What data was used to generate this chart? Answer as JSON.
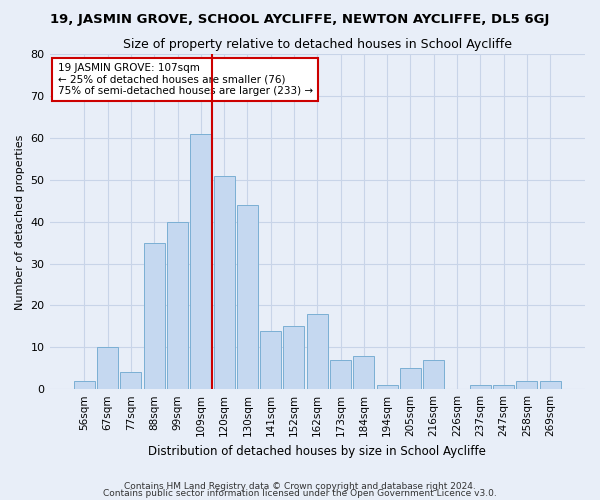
{
  "title": "19, JASMIN GROVE, SCHOOL AYCLIFFE, NEWTON AYCLIFFE, DL5 6GJ",
  "subtitle": "Size of property relative to detached houses in School Aycliffe",
  "xlabel": "Distribution of detached houses by size in School Aycliffe",
  "ylabel": "Number of detached properties",
  "bins": [
    "56sqm",
    "67sqm",
    "77sqm",
    "88sqm",
    "99sqm",
    "109sqm",
    "120sqm",
    "130sqm",
    "141sqm",
    "152sqm",
    "162sqm",
    "173sqm",
    "184sqm",
    "194sqm",
    "205sqm",
    "216sqm",
    "226sqm",
    "237sqm",
    "247sqm",
    "258sqm",
    "269sqm"
  ],
  "values": [
    2,
    10,
    4,
    35,
    40,
    61,
    51,
    44,
    14,
    15,
    18,
    7,
    8,
    1,
    5,
    7,
    0,
    1,
    1,
    2,
    2
  ],
  "bar_color": "#c5d8f0",
  "bar_edge_color": "#7bafd4",
  "grid_color": "#c8d4e8",
  "background_color": "#e8eef8",
  "vline_x_index": 5.5,
  "vline_color": "#cc0000",
  "annotation_text": "19 JASMIN GROVE: 107sqm\n← 25% of detached houses are smaller (76)\n75% of semi-detached houses are larger (233) →",
  "annotation_box_color": "#ffffff",
  "annotation_box_edge": "#cc0000",
  "ylim": [
    0,
    80
  ],
  "yticks": [
    0,
    10,
    20,
    30,
    40,
    50,
    60,
    70,
    80
  ],
  "title_fontsize": 9.5,
  "subtitle_fontsize": 9,
  "xlabel_fontsize": 8.5,
  "ylabel_fontsize": 8,
  "tick_fontsize": 7.5,
  "footnote1": "Contains HM Land Registry data © Crown copyright and database right 2024.",
  "footnote2": "Contains public sector information licensed under the Open Government Licence v3.0."
}
